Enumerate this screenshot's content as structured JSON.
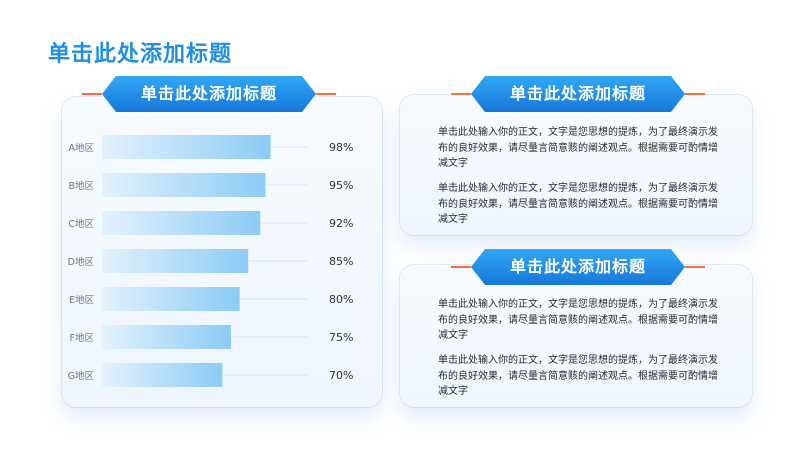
{
  "page": {
    "title": "单击此处添加标题"
  },
  "left_panel": {
    "header": "单击此处添加标题"
  },
  "right_top": {
    "header": "单击此处添加标题",
    "paragraphs": [
      "单击此处输入你的正文，文字是您思想的提炼，为了最终演示发布的良好效果，请尽量言简意赅的阐述观点。根据需要可酌情增减文字",
      "单击此处输入你的正文，文字是您思想的提炼，为了最终演示发布的良好效果，请尽量言简意赅的阐述观点。根据需要可酌情增减文字"
    ]
  },
  "right_bottom": {
    "header": "单击此处添加标题",
    "paragraphs": [
      "单击此处输入你的正文，文字是您思想的提炼，为了最终演示发布的良好效果，请尽量言简意赅的阐述观点。根据需要可酌情增减文字",
      "单击此处输入你的正文，文字是您思想的提炼，为了最终演示发布的良好效果，请尽量言简意赅的阐述观点。根据需要可酌情增减文字"
    ]
  },
  "colors": {
    "accent": "#1f8fe6",
    "header_gradient_top": "#31a8f5",
    "header_gradient_bottom": "#1677d9",
    "header_line": "#ff6b3d",
    "bar_gradient_left": "#e3f2fd",
    "bar_gradient_right": "#8ccbf5"
  },
  "chart_data": {
    "type": "bar",
    "orientation": "horizontal",
    "categories": [
      "A地区",
      "B地区",
      "C地区",
      "D地区",
      "E地区",
      "F地区",
      "G地区"
    ],
    "values": [
      98,
      95,
      92,
      85,
      80,
      75,
      70
    ],
    "value_labels": [
      "98%",
      "95%",
      "92%",
      "85%",
      "80%",
      "75%",
      "70%"
    ],
    "unit": "%",
    "grid": false,
    "legend": "none"
  }
}
